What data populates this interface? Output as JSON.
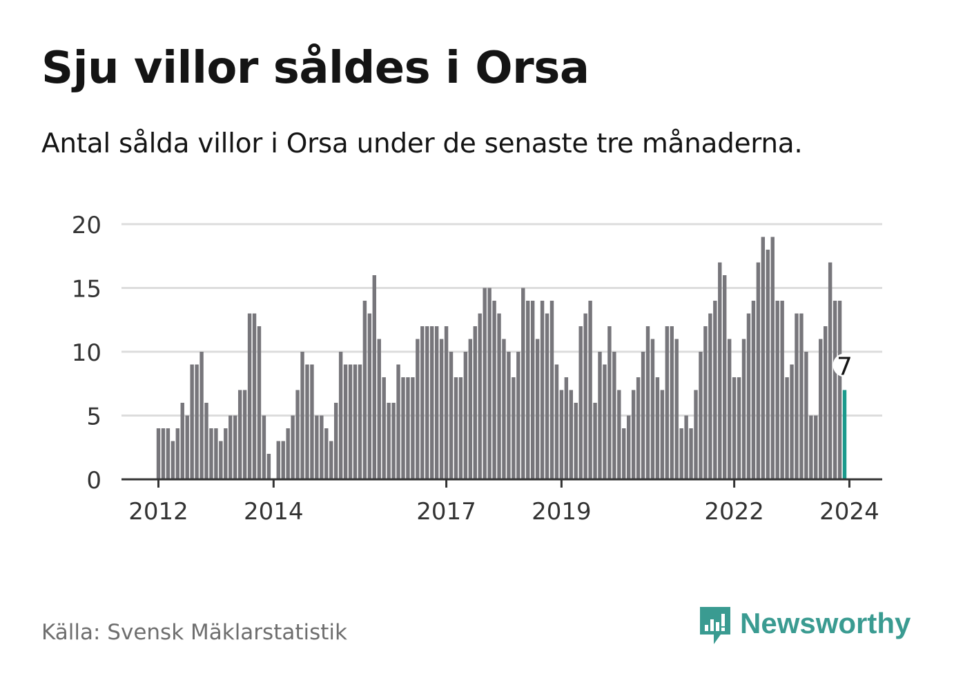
{
  "title": "Sju villor såldes i Orsa",
  "subtitle": "Antal sålda villor i Orsa under de senaste tre månaderna.",
  "source": "Källa: Svensk Mäklarstatistik",
  "brand": {
    "name": "Newsworthy",
    "icon": "newsworthy-logo-icon"
  },
  "colors": {
    "bar": "#77767b",
    "highlight": "#1a9a8c",
    "grid": "#dcdcdc",
    "axis": "#333333",
    "brand": "#3a9b91"
  },
  "chart_data": {
    "type": "bar",
    "title": "Sju villor såldes i Orsa",
    "xlabel": "",
    "ylabel": "",
    "ylim": [
      0,
      20
    ],
    "yticks": [
      0,
      5,
      10,
      15,
      20
    ],
    "x_start": 2012.0,
    "x_step": 0.0833333,
    "xticks": [
      {
        "value": 2012,
        "label": "2012"
      },
      {
        "value": 2014,
        "label": "2014"
      },
      {
        "value": 2017,
        "label": "2017"
      },
      {
        "value": 2019,
        "label": "2019"
      },
      {
        "value": 2022,
        "label": "2022"
      },
      {
        "value": 2024,
        "label": "2024"
      }
    ],
    "values": [
      4,
      4,
      4,
      3,
      4,
      6,
      5,
      9,
      9,
      10,
      6,
      4,
      4,
      3,
      4,
      5,
      5,
      7,
      7,
      13,
      13,
      12,
      5,
      2,
      0,
      3,
      3,
      4,
      5,
      7,
      10,
      9,
      9,
      5,
      5,
      4,
      3,
      6,
      10,
      9,
      9,
      9,
      9,
      14,
      13,
      16,
      11,
      8,
      6,
      6,
      9,
      8,
      8,
      8,
      11,
      12,
      12,
      12,
      12,
      11,
      12,
      10,
      8,
      8,
      10,
      11,
      12,
      13,
      15,
      15,
      14,
      13,
      11,
      10,
      8,
      10,
      15,
      14,
      14,
      11,
      14,
      13,
      14,
      9,
      7,
      8,
      7,
      6,
      12,
      13,
      14,
      6,
      10,
      9,
      12,
      10,
      7,
      4,
      5,
      7,
      8,
      10,
      12,
      11,
      8,
      7,
      12,
      12,
      11,
      4,
      5,
      4,
      7,
      10,
      12,
      13,
      14,
      17,
      16,
      11,
      8,
      8,
      11,
      13,
      14,
      17,
      19,
      18,
      19,
      14,
      14,
      8,
      9,
      13,
      13,
      10,
      5,
      5,
      11,
      12,
      17,
      14,
      14,
      7
    ],
    "highlight_index": 143,
    "highlight_label": "7"
  }
}
